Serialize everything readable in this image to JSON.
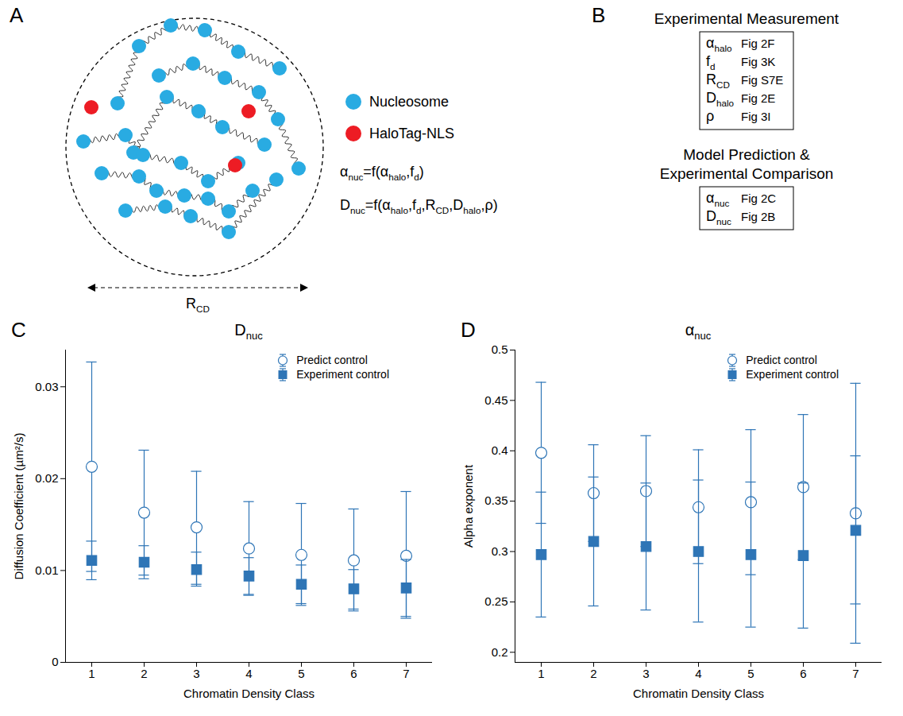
{
  "diagram": {
    "A": {
      "letter": "A",
      "legend": [
        {
          "label": "Nucleosome",
          "color": "#29abe2"
        },
        {
          "label": "HaloTag-NLS",
          "color": "#ed1c24"
        }
      ],
      "equations": [
        [
          {
            "t": "α"
          },
          {
            "sub": "nuc"
          },
          {
            "t": "=f(α"
          },
          {
            "sub": "halo"
          },
          {
            "t": ",f"
          },
          {
            "sub": "d"
          },
          {
            "t": ")"
          }
        ],
        [
          {
            "t": "D"
          },
          {
            "sub": "nuc"
          },
          {
            "t": "=f(α"
          },
          {
            "sub": "halo"
          },
          {
            "t": ",f"
          },
          {
            "sub": "d"
          },
          {
            "t": ",R"
          },
          {
            "sub": "CD"
          },
          {
            "t": ",D"
          },
          {
            "sub": "halo"
          },
          {
            "t": ",ρ)"
          }
        ]
      ],
      "dimension": [
        {
          "t": "R"
        },
        {
          "sub": "CD"
        }
      ]
    },
    "B": {
      "letter": "B",
      "groups": [
        {
          "heading": [
            "Experimental Measurement"
          ],
          "rows": [
            {
              "symbol": [
                {
                  "t": "α"
                },
                {
                  "sub": "halo"
                }
              ],
              "ref": "Fig 2F"
            },
            {
              "symbol": [
                {
                  "t": "f"
                },
                {
                  "sub": "d"
                }
              ],
              "ref": "Fig 3K"
            },
            {
              "symbol": [
                {
                  "t": "R"
                },
                {
                  "sub": "CD"
                }
              ],
              "ref": "Fig S7E"
            },
            {
              "symbol": [
                {
                  "t": "D"
                },
                {
                  "sub": "halo"
                }
              ],
              "ref": "Fig 2E"
            },
            {
              "symbol": [
                {
                  "t": "ρ"
                }
              ],
              "ref": "Fig 3I"
            }
          ]
        },
        {
          "heading": [
            "Model Prediction &",
            "Experimental Comparison"
          ],
          "rows": [
            {
              "symbol": [
                {
                  "t": "α"
                },
                {
                  "sub": "nuc"
                }
              ],
              "ref": "Fig 2C"
            },
            {
              "symbol": [
                {
                  "t": "D"
                },
                {
                  "sub": "nuc"
                }
              ],
              "ref": "Fig 2B"
            }
          ]
        }
      ]
    }
  },
  "chart_data": [
    {
      "panel": "C",
      "type": "scatter",
      "title": [
        {
          "t": "D"
        },
        {
          "sub": "nuc"
        }
      ],
      "x_label": "Chromatin Density Class",
      "y_label": "Diffusion Coefficient (µm²/s)",
      "x": [
        1,
        2,
        3,
        4,
        5,
        6,
        7
      ],
      "series": [
        {
          "name": "Predict control",
          "color": "#2e75b6",
          "marker": "circle-open",
          "values": [
            0.0213,
            0.0163,
            0.0147,
            0.0124,
            0.0117,
            0.0111,
            0.0116
          ],
          "error_lower": [
            0.0099,
            0.0095,
            0.0085,
            0.0073,
            0.0062,
            0.0056,
            0.0048
          ],
          "error_upper": [
            0.0327,
            0.0231,
            0.0208,
            0.0175,
            0.0173,
            0.0167,
            0.0186
          ]
        },
        {
          "name": "Experiment control",
          "color": "#2e75b6",
          "marker": "square",
          "values": [
            0.0111,
            0.0109,
            0.0101,
            0.0094,
            0.0085,
            0.008,
            0.0081
          ],
          "error_lower": [
            0.009,
            0.0091,
            0.0083,
            0.0074,
            0.0064,
            0.0058,
            0.005
          ],
          "error_upper": [
            0.0132,
            0.0127,
            0.012,
            0.0114,
            0.0106,
            0.0101,
            0.0112
          ]
        }
      ],
      "xlim": [
        0.5,
        7.5
      ],
      "xticks": [
        1,
        2,
        3,
        4,
        5,
        6,
        7
      ],
      "ylim": [
        0,
        0.034
      ],
      "yticks": [
        0,
        0.01,
        0.02,
        0.03
      ],
      "legend": "top-right"
    },
    {
      "panel": "D",
      "type": "scatter",
      "title": [
        {
          "t": "α"
        },
        {
          "sub": "nuc"
        }
      ],
      "x_label": "Chromatin Density Class",
      "y_label": "Alpha exponent",
      "x": [
        1,
        2,
        3,
        4,
        5,
        6,
        7
      ],
      "series": [
        {
          "name": "Predict control",
          "color": "#2e75b6",
          "marker": "circle-open",
          "values": [
            0.398,
            0.358,
            0.36,
            0.344,
            0.349,
            0.364,
            0.338
          ],
          "error_lower": [
            0.328,
            0.31,
            0.305,
            0.288,
            0.277,
            0.292,
            0.209
          ],
          "error_upper": [
            0.468,
            0.406,
            0.415,
            0.401,
            0.421,
            0.436,
            0.467
          ]
        },
        {
          "name": "Experiment control",
          "color": "#2e75b6",
          "marker": "square",
          "values": [
            0.297,
            0.31,
            0.305,
            0.3,
            0.297,
            0.296,
            0.321
          ],
          "error_lower": [
            0.235,
            0.246,
            0.242,
            0.23,
            0.225,
            0.224,
            0.248
          ],
          "error_upper": [
            0.359,
            0.374,
            0.368,
            0.371,
            0.369,
            0.368,
            0.395
          ]
        }
      ],
      "xlim": [
        0.5,
        7.5
      ],
      "xticks": [
        1,
        2,
        3,
        4,
        5,
        6,
        7
      ],
      "ylim": [
        0.19,
        0.5
      ],
      "yticks": [
        0.2,
        0.25,
        0.3,
        0.35,
        0.4,
        0.45,
        0.5
      ],
      "legend": "top-right"
    }
  ]
}
